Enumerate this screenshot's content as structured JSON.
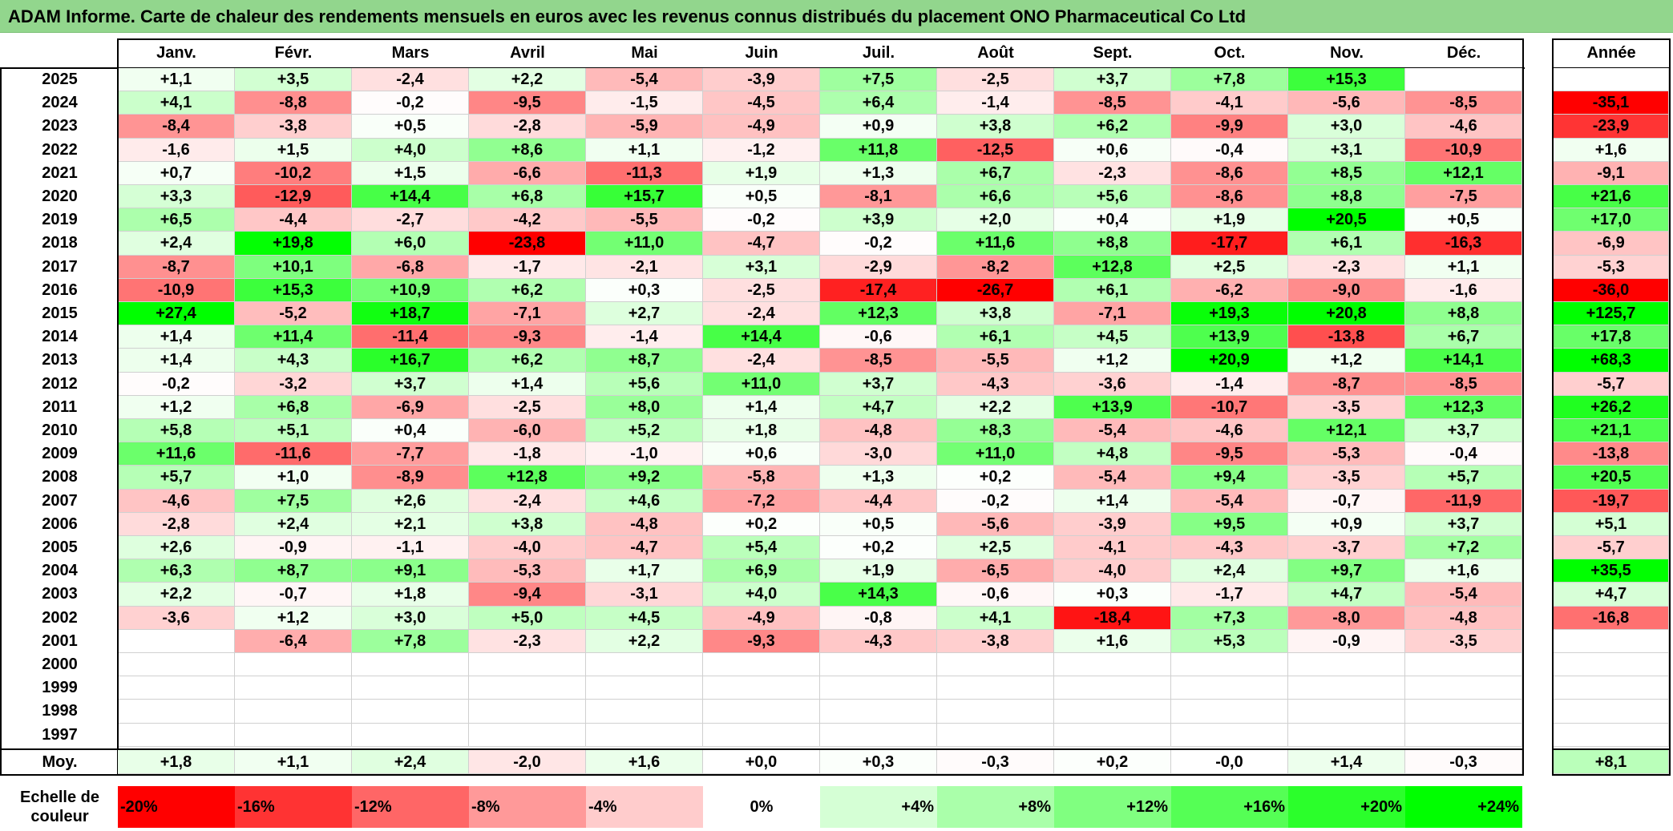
{
  "title": "ADAM Informe. Carte de chaleur des rendements mensuels en euros avec les revenus connus distribués du placement ONO Pharmaceutical Co Ltd",
  "chart_data": {
    "type": "heatmap",
    "months": [
      "Janv.",
      "Févr.",
      "Mars",
      "Avril",
      "Mai",
      "Juin",
      "Juil.",
      "Août",
      "Sept.",
      "Oct.",
      "Nov.",
      "Déc."
    ],
    "year_header": "Année",
    "rows": [
      {
        "year": "2025",
        "values": [
          "+1,1",
          "+3,5",
          "-2,4",
          "+2,2",
          "-5,4",
          "-3,9",
          "+7,5",
          "-2,5",
          "+3,7",
          "+7,8",
          "+15,3",
          ""
        ],
        "annual": ""
      },
      {
        "year": "2024",
        "values": [
          "+4,1",
          "-8,8",
          "-0,2",
          "-9,5",
          "-1,5",
          "-4,5",
          "+6,4",
          "-1,4",
          "-8,5",
          "-4,1",
          "-5,6",
          "-8,5"
        ],
        "annual": "-35,1"
      },
      {
        "year": "2023",
        "values": [
          "-8,4",
          "-3,8",
          "+0,5",
          "-2,8",
          "-5,9",
          "-4,9",
          "+0,9",
          "+3,8",
          "+6,2",
          "-9,9",
          "+3,0",
          "-4,6"
        ],
        "annual": "-23,9"
      },
      {
        "year": "2022",
        "values": [
          "-1,6",
          "+1,5",
          "+4,0",
          "+8,6",
          "+1,1",
          "-1,2",
          "+11,8",
          "-12,5",
          "+0,6",
          "-0,4",
          "+3,1",
          "-10,9"
        ],
        "annual": "+1,6"
      },
      {
        "year": "2021",
        "values": [
          "+0,7",
          "-10,2",
          "+1,5",
          "-6,6",
          "-11,3",
          "+1,9",
          "+1,3",
          "+6,7",
          "-2,3",
          "-8,6",
          "+8,5",
          "+12,1"
        ],
        "annual": "-9,1"
      },
      {
        "year": "2020",
        "values": [
          "+3,3",
          "-12,9",
          "+14,4",
          "+6,8",
          "+15,7",
          "+0,5",
          "-8,1",
          "+6,6",
          "+5,6",
          "-8,6",
          "+8,8",
          "-7,5"
        ],
        "annual": "+21,6"
      },
      {
        "year": "2019",
        "values": [
          "+6,5",
          "-4,4",
          "-2,7",
          "-4,2",
          "-5,5",
          "-0,2",
          "+3,9",
          "+2,0",
          "+0,4",
          "+1,9",
          "+20,5",
          "+0,5"
        ],
        "annual": "+17,0"
      },
      {
        "year": "2018",
        "values": [
          "+2,4",
          "+19,8",
          "+6,0",
          "-23,8",
          "+11,0",
          "-4,7",
          "-0,2",
          "+11,6",
          "+8,8",
          "-17,7",
          "+6,1",
          "-16,3"
        ],
        "annual": "-6,9"
      },
      {
        "year": "2017",
        "values": [
          "-8,7",
          "+10,1",
          "-6,8",
          "-1,7",
          "-2,1",
          "+3,1",
          "-2,9",
          "-8,2",
          "+12,8",
          "+2,5",
          "-2,3",
          "+1,1"
        ],
        "annual": "-5,3"
      },
      {
        "year": "2016",
        "values": [
          "-10,9",
          "+15,3",
          "+10,9",
          "+6,2",
          "+0,3",
          "-2,5",
          "-17,4",
          "-26,7",
          "+6,1",
          "-6,2",
          "-9,0",
          "-1,6"
        ],
        "annual": "-36,0"
      },
      {
        "year": "2015",
        "values": [
          "+27,4",
          "-5,2",
          "+18,7",
          "-7,1",
          "+2,7",
          "-2,4",
          "+12,3",
          "+3,8",
          "-7,1",
          "+19,3",
          "+20,8",
          "+8,8"
        ],
        "annual": "+125,7"
      },
      {
        "year": "2014",
        "values": [
          "+1,4",
          "+11,4",
          "-11,4",
          "-9,3",
          "-1,4",
          "+14,4",
          "-0,6",
          "+6,1",
          "+4,5",
          "+13,9",
          "-13,8",
          "+6,7"
        ],
        "annual": "+17,8"
      },
      {
        "year": "2013",
        "values": [
          "+1,4",
          "+4,3",
          "+16,7",
          "+6,2",
          "+8,7",
          "-2,4",
          "-8,5",
          "-5,5",
          "+1,2",
          "+20,9",
          "+1,2",
          "+14,1"
        ],
        "annual": "+68,3"
      },
      {
        "year": "2012",
        "values": [
          "-0,2",
          "-3,2",
          "+3,7",
          "+1,4",
          "+5,6",
          "+11,0",
          "+3,7",
          "-4,3",
          "-3,6",
          "-1,4",
          "-8,7",
          "-8,5"
        ],
        "annual": "-5,7"
      },
      {
        "year": "2011",
        "values": [
          "+1,2",
          "+6,8",
          "-6,9",
          "-2,5",
          "+8,0",
          "+1,4",
          "+4,7",
          "+2,2",
          "+13,9",
          "-10,7",
          "-3,5",
          "+12,3"
        ],
        "annual": "+26,2"
      },
      {
        "year": "2010",
        "values": [
          "+5,8",
          "+5,1",
          "+0,4",
          "-6,0",
          "+5,2",
          "+1,8",
          "-4,8",
          "+8,3",
          "-5,4",
          "-4,6",
          "+12,1",
          "+3,7"
        ],
        "annual": "+21,1"
      },
      {
        "year": "2009",
        "values": [
          "+11,6",
          "-11,6",
          "-7,7",
          "-1,8",
          "-1,0",
          "+0,6",
          "-3,0",
          "+11,0",
          "+4,8",
          "-9,5",
          "-5,3",
          "-0,4"
        ],
        "annual": "-13,8"
      },
      {
        "year": "2008",
        "values": [
          "+5,7",
          "+1,0",
          "-8,9",
          "+12,8",
          "+9,2",
          "-5,8",
          "+1,3",
          "+0,2",
          "-5,4",
          "+9,4",
          "-3,5",
          "+5,7"
        ],
        "annual": "+20,5"
      },
      {
        "year": "2007",
        "values": [
          "-4,6",
          "+7,5",
          "+2,6",
          "-2,4",
          "+4,6",
          "-7,2",
          "-4,4",
          "-0,2",
          "+1,4",
          "-5,4",
          "-0,7",
          "-11,9"
        ],
        "annual": "-19,7"
      },
      {
        "year": "2006",
        "values": [
          "-2,8",
          "+2,4",
          "+2,1",
          "+3,8",
          "-4,8",
          "+0,2",
          "+0,5",
          "-5,6",
          "-3,9",
          "+9,5",
          "+0,9",
          "+3,7"
        ],
        "annual": "+5,1"
      },
      {
        "year": "2005",
        "values": [
          "+2,6",
          "-0,9",
          "-1,1",
          "-4,0",
          "-4,7",
          "+5,4",
          "+0,2",
          "+2,5",
          "-4,1",
          "-4,3",
          "-3,7",
          "+7,2"
        ],
        "annual": "-5,7"
      },
      {
        "year": "2004",
        "values": [
          "+6,3",
          "+8,7",
          "+9,1",
          "-5,3",
          "+1,7",
          "+6,9",
          "+1,9",
          "-6,5",
          "-4,0",
          "+2,4",
          "+9,7",
          "+1,6"
        ],
        "annual": "+35,5"
      },
      {
        "year": "2003",
        "values": [
          "+2,2",
          "-0,7",
          "+1,8",
          "-9,4",
          "-3,1",
          "+4,0",
          "+14,3",
          "-0,6",
          "+0,3",
          "-1,7",
          "+4,7",
          "-5,4"
        ],
        "annual": "+4,7"
      },
      {
        "year": "2002",
        "values": [
          "-3,6",
          "+1,2",
          "+3,0",
          "+5,0",
          "+4,5",
          "-4,9",
          "-0,8",
          "+4,1",
          "-18,4",
          "+7,3",
          "-8,0",
          "-4,8"
        ],
        "annual": "-16,8"
      },
      {
        "year": "2001",
        "values": [
          "",
          "-6,4",
          "+7,8",
          "-2,3",
          "+2,2",
          "-9,3",
          "-4,3",
          "-3,8",
          "+1,6",
          "+5,3",
          "-0,9",
          "-3,5"
        ],
        "annual": ""
      },
      {
        "year": "2000",
        "values": [
          "",
          "",
          "",
          "",
          "",
          "",
          "",
          "",
          "",
          "",
          "",
          ""
        ],
        "annual": ""
      },
      {
        "year": "1999",
        "values": [
          "",
          "",
          "",
          "",
          "",
          "",
          "",
          "",
          "",
          "",
          "",
          ""
        ],
        "annual": ""
      },
      {
        "year": "1998",
        "values": [
          "",
          "",
          "",
          "",
          "",
          "",
          "",
          "",
          "",
          "",
          "",
          ""
        ],
        "annual": ""
      },
      {
        "year": "1997",
        "values": [
          "",
          "",
          "",
          "",
          "",
          "",
          "",
          "",
          "",
          "",
          "",
          ""
        ],
        "annual": ""
      }
    ],
    "average": {
      "label": "Moy.",
      "values": [
        "+1,8",
        "+1,1",
        "+2,4",
        "-2,0",
        "+1,6",
        "+0,0",
        "+0,3",
        "-0,3",
        "+0,2",
        "-0,0",
        "+1,4",
        "-0,3"
      ],
      "annual": "+8,1"
    },
    "scale": {
      "label": "Echelle de couleur",
      "stops": [
        "-20%",
        "-16%",
        "-12%",
        "-8%",
        "-4%",
        "0%",
        "+4%",
        "+8%",
        "+12%",
        "+16%",
        "+20%",
        "+24%"
      ],
      "stop_values": [
        -20,
        -16,
        -12,
        -8,
        -4,
        0,
        4,
        8,
        12,
        16,
        20,
        24
      ]
    },
    "colors": {
      "negative_max": "#ff0000",
      "positive_max": "#00ff00",
      "neutral": "#ffffff",
      "title_bg": "#92d68d"
    }
  }
}
